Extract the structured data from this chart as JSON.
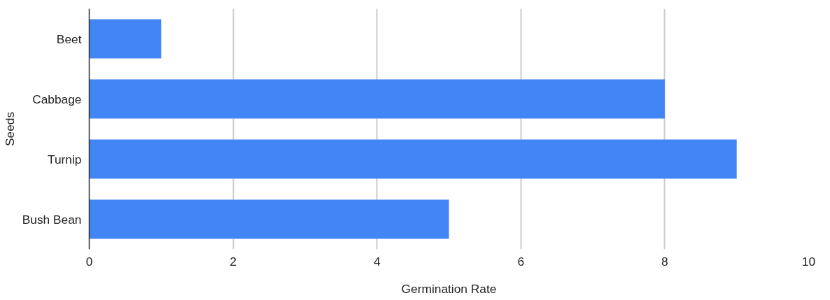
{
  "chart_data": {
    "type": "bar",
    "orientation": "horizontal",
    "xlabel": "Germination Rate",
    "ylabel": "Seeds",
    "categories": [
      "Beet",
      "Cabbage",
      "Turnip",
      "Bush Bean"
    ],
    "values": [
      1,
      8,
      9,
      5
    ],
    "color": "#4285f4",
    "xlim": [
      0,
      10
    ],
    "xticks": [
      0,
      2,
      4,
      6,
      8,
      10
    ],
    "grid": "x"
  }
}
